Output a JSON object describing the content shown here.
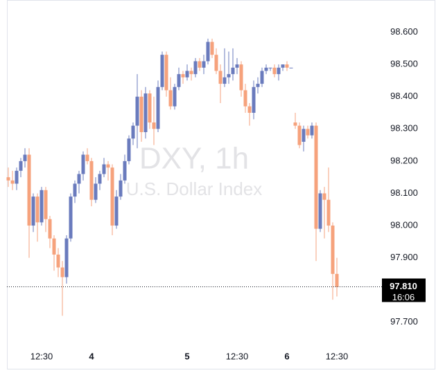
{
  "chart_data": {
    "type": "candlestick",
    "watermark_title": "DXY, 1h",
    "watermark_subtitle": "U.S. Dollar Index",
    "categories": [
      null,
      null,
      null,
      null,
      null,
      null,
      null,
      null,
      "12:30",
      null,
      null,
      null,
      null,
      null,
      null,
      null,
      null,
      null,
      null,
      null,
      "4",
      null,
      null,
      null,
      null,
      null,
      null,
      null,
      null,
      null,
      null,
      null,
      null,
      null,
      null,
      null,
      null,
      null,
      null,
      null,
      null,
      null,
      null,
      "5",
      null,
      null,
      null,
      null,
      null,
      null,
      null,
      null,
      null,
      null,
      null,
      "12:30",
      null,
      null,
      null,
      null,
      null,
      null,
      null,
      null,
      null,
      null,
      null,
      "6",
      null,
      null,
      null,
      null,
      null,
      null,
      null,
      null,
      null,
      null,
      null,
      "12:30"
    ],
    "open": [
      98.15,
      98.14,
      98.13,
      98.17,
      98.2,
      98.22,
      98.0,
      98.09,
      98.01,
      98.11,
      98.02,
      97.96,
      97.91,
      97.87,
      97.84,
      97.96,
      98.09,
      98.13,
      98.16,
      98.22,
      98.2,
      98.08,
      98.13,
      98.16,
      98.19,
      98.18,
      98.0,
      98.09,
      98.14,
      98.2,
      98.27,
      98.31,
      98.4,
      98.29,
      98.41,
      98.32,
      98.3,
      98.43,
      98.53,
      98.42,
      98.37,
      98.43,
      98.47,
      98.46,
      98.48,
      98.47,
      98.51,
      98.49,
      98.51,
      98.57,
      98.53,
      98.48,
      98.44,
      98.46,
      98.47,
      98.49,
      98.5,
      98.42,
      98.37,
      98.35,
      98.43,
      98.44,
      98.48,
      98.49,
      98.49,
      98.47,
      98.49,
      98.5,
      98.49,
      98.32,
      98.31,
      98.26,
      98.3,
      98.28,
      98.31,
      97.99,
      98.1,
      98.08,
      98.0,
      97.85
    ],
    "high": [
      98.18,
      98.17,
      98.18,
      98.21,
      98.24,
      98.24,
      98.1,
      98.1,
      98.12,
      98.12,
      98.03,
      97.97,
      97.93,
      97.89,
      97.97,
      98.1,
      98.14,
      98.17,
      98.23,
      98.24,
      98.21,
      98.15,
      98.17,
      98.21,
      98.2,
      98.19,
      98.11,
      98.16,
      98.22,
      98.28,
      98.32,
      98.47,
      98.42,
      98.43,
      98.42,
      98.4,
      98.45,
      98.54,
      98.54,
      98.46,
      98.44,
      98.49,
      98.48,
      98.5,
      98.49,
      98.52,
      98.52,
      98.53,
      98.58,
      98.58,
      98.55,
      98.5,
      98.55,
      98.54,
      98.55,
      98.52,
      98.51,
      98.44,
      98.38,
      98.45,
      98.46,
      98.49,
      98.5,
      98.49,
      98.5,
      98.5,
      98.5,
      98.51,
      98.49,
      98.35,
      98.32,
      98.31,
      98.31,
      98.32,
      98.32,
      98.11,
      98.12,
      98.18,
      98.01,
      97.9
    ],
    "low": [
      98.12,
      98.11,
      98.11,
      98.15,
      98.18,
      97.9,
      97.98,
      97.95,
      98.0,
      97.98,
      97.93,
      97.86,
      97.84,
      97.72,
      97.82,
      97.95,
      98.07,
      98.1,
      98.14,
      98.19,
      98.06,
      98.07,
      98.11,
      98.15,
      98.14,
      97.97,
      97.99,
      98.08,
      98.13,
      98.19,
      98.25,
      98.24,
      98.26,
      98.27,
      98.3,
      98.25,
      98.29,
      98.42,
      98.4,
      98.36,
      98.36,
      98.42,
      98.44,
      98.45,
      98.45,
      98.46,
      98.48,
      98.47,
      98.5,
      98.52,
      98.47,
      98.38,
      98.43,
      98.44,
      98.45,
      98.47,
      98.4,
      98.35,
      98.31,
      98.33,
      98.41,
      98.43,
      98.47,
      98.48,
      98.46,
      98.45,
      98.48,
      98.48,
      98.49,
      98.3,
      98.24,
      98.23,
      98.27,
      98.27,
      97.89,
      97.98,
      97.96,
      97.98,
      97.77,
      97.78
    ],
    "close": [
      98.14,
      98.13,
      98.17,
      98.2,
      98.22,
      98.0,
      98.09,
      98.01,
      98.11,
      98.02,
      97.96,
      97.91,
      97.87,
      97.84,
      97.96,
      98.09,
      98.13,
      98.16,
      98.22,
      98.2,
      98.08,
      98.13,
      98.16,
      98.19,
      98.18,
      98.0,
      98.09,
      98.14,
      98.2,
      98.27,
      98.31,
      98.4,
      98.29,
      98.41,
      98.32,
      98.3,
      98.43,
      98.53,
      98.42,
      98.37,
      98.43,
      98.47,
      98.46,
      98.48,
      98.47,
      98.51,
      98.49,
      98.51,
      98.57,
      98.53,
      98.48,
      98.44,
      98.46,
      98.47,
      98.49,
      98.5,
      98.42,
      98.37,
      98.35,
      98.43,
      98.44,
      98.48,
      98.49,
      98.49,
      98.47,
      98.49,
      98.5,
      98.49,
      98.49,
      98.31,
      98.25,
      98.3,
      98.28,
      98.31,
      97.99,
      98.1,
      98.08,
      98.0,
      97.85,
      97.81
    ],
    "up_color": "#6a7bbd",
    "down_color": "#f6a27c",
    "ylim": [
      97.62,
      98.7
    ],
    "yticks": [
      {
        "value": 97.7,
        "label": "97.700"
      },
      {
        "value": 97.8,
        "label": "97.800"
      },
      {
        "value": 97.9,
        "label": "97.900"
      },
      {
        "value": 98.0,
        "label": "98.000"
      },
      {
        "value": 98.1,
        "label": "98.100"
      },
      {
        "value": 98.2,
        "label": "98.200"
      },
      {
        "value": 98.3,
        "label": "98.300"
      },
      {
        "value": 98.4,
        "label": "98.400"
      },
      {
        "value": 98.5,
        "label": "98.500"
      },
      {
        "value": 98.6,
        "label": "98.600"
      }
    ],
    "last_price": {
      "value": 97.81,
      "label": "97.810"
    },
    "countdown": "16:06"
  }
}
